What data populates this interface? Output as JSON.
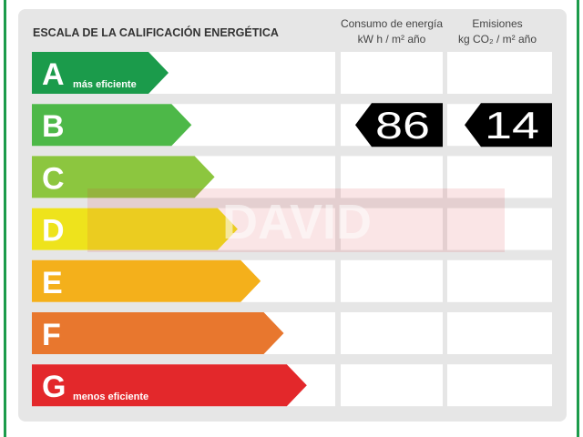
{
  "header": {
    "title": "ESCALA DE LA CALIFICACIÓN ENERGÉTICA",
    "columns": [
      {
        "title": "Consumo de energía",
        "unit": "kW h / m² año"
      },
      {
        "title": "Emisiones",
        "unit": "kg CO₂ / m² año"
      }
    ]
  },
  "classes": [
    {
      "letter": "A",
      "note": "más eficiente",
      "color": "#1b9b4b"
    },
    {
      "letter": "B",
      "color": "#4db848",
      "consumption": 86,
      "emissions": 14
    },
    {
      "letter": "C",
      "color": "#8cc63f"
    },
    {
      "letter": "D",
      "color": "#eee31c"
    },
    {
      "letter": "E",
      "color": "#f4b01b"
    },
    {
      "letter": "F",
      "color": "#e8772e"
    },
    {
      "letter": "G",
      "note": "menos eficiente",
      "color": "#e3282b"
    }
  ],
  "watermark": "DAVID"
}
